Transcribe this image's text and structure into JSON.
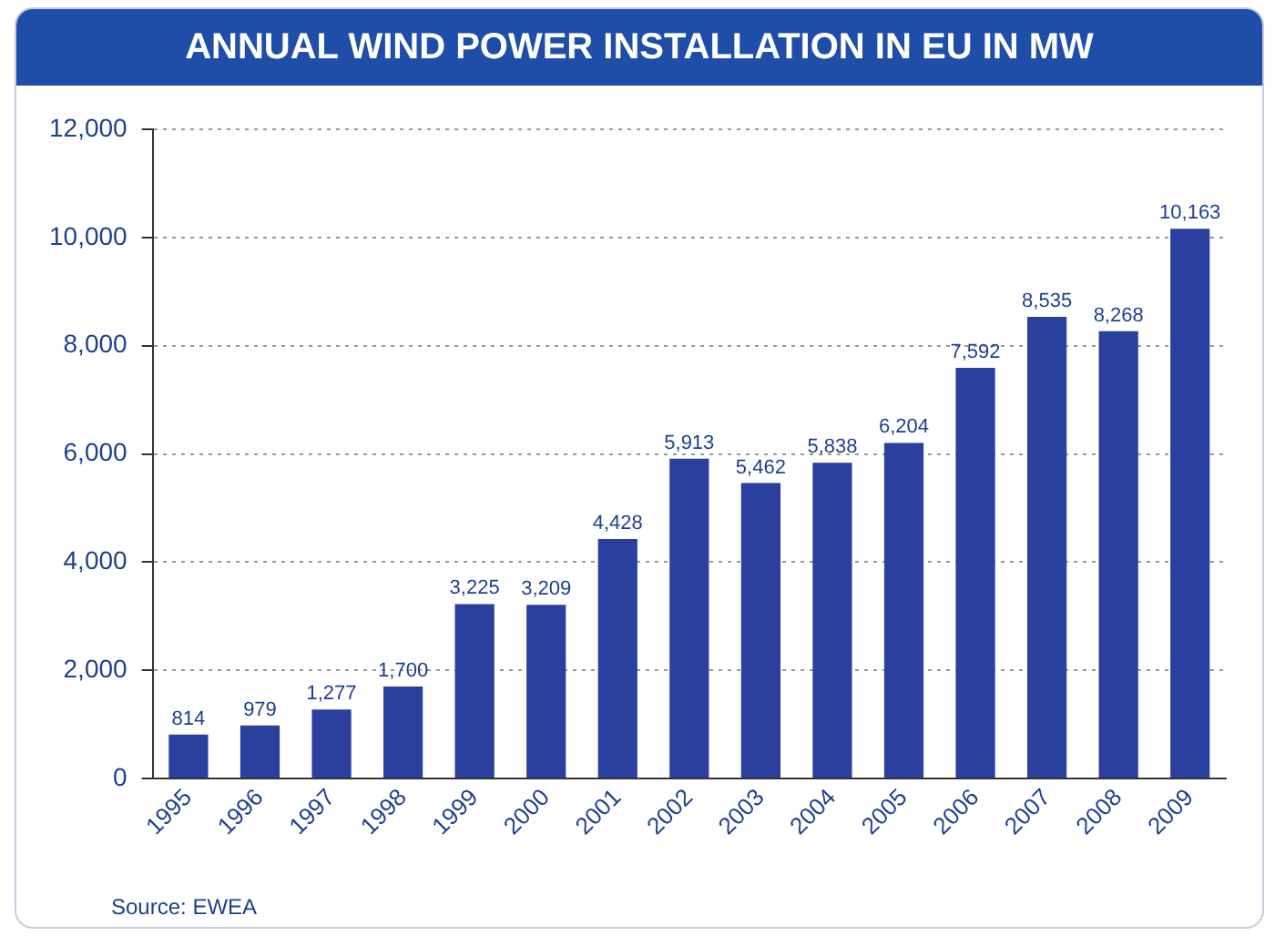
{
  "chart_data": {
    "type": "bar",
    "title": "ANNUAL WIND POWER INSTALLATION IN EU IN MW",
    "categories": [
      "1995",
      "1996",
      "1997",
      "1998",
      "1999",
      "2000",
      "2001",
      "2002",
      "2003",
      "2004",
      "2005",
      "2006",
      "2007",
      "2008",
      "2009"
    ],
    "values": [
      814,
      979,
      1277,
      1700,
      3225,
      3209,
      4428,
      5913,
      5462,
      5838,
      6204,
      7592,
      8535,
      8268,
      10163
    ],
    "value_labels": [
      "814",
      "979",
      "1,277",
      "1,700",
      "3,225",
      "3,209",
      "4,428",
      "5,913",
      "5,462",
      "5,838",
      "6,204",
      "7,592",
      "8,535",
      "8,268",
      "10,163"
    ],
    "color": "#2b3f9e",
    "ylim": [
      0,
      12000
    ],
    "yticks": [
      {
        "value": 0,
        "label": "0"
      },
      {
        "value": 2000,
        "label": "2,000"
      },
      {
        "value": 4000,
        "label": "4,000"
      },
      {
        "value": 6000,
        "label": "6,000"
      },
      {
        "value": 8000,
        "label": "8,000"
      },
      {
        "value": 10000,
        "label": "10,000"
      },
      {
        "value": 12000,
        "label": "12,000"
      }
    ],
    "grid": "y",
    "annotations": [
      "Source: EWEA"
    ]
  }
}
